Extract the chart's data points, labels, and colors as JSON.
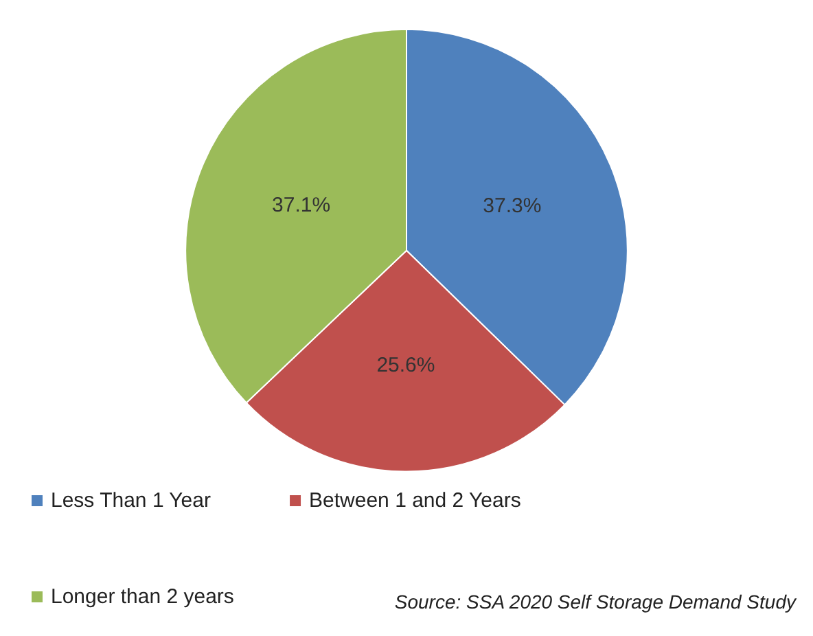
{
  "chart_data": {
    "type": "pie",
    "categories": [
      "Less Than 1 Year",
      "Between 1 and 2 Years",
      "Longer than 2 years"
    ],
    "values": [
      37.3,
      25.6,
      37.1
    ],
    "colors": [
      "#4f81bd",
      "#c0504d",
      "#9bbb59"
    ],
    "value_labels": [
      "37.3%",
      "25.6%",
      "37.1%"
    ],
    "legend": "bottom",
    "annotations": [
      "Source: SSA 2020 Self Storage Demand Study"
    ]
  }
}
